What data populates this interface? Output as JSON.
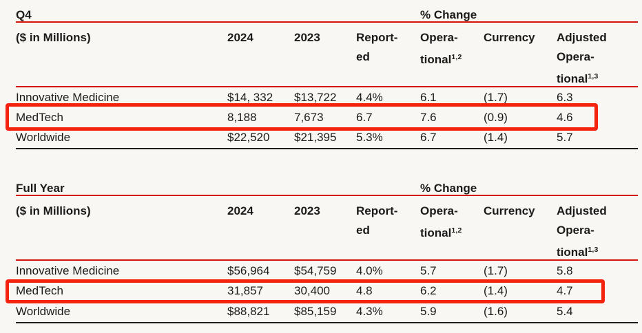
{
  "colors": {
    "background": "#f9f7f4",
    "text": "#1c1b1a",
    "rule_red": "#d2140b",
    "highlight_box_red": "#f3230e"
  },
  "tables": [
    {
      "period": "Q4",
      "pct_change": "% Change",
      "unit": "($ in Millions)",
      "col_2024": "2024",
      "col_2023": "2023",
      "col_reported_line1": "Report-",
      "col_reported_line2": "ed",
      "col_operational_line1": "Opera-",
      "col_operational_line2": "tional",
      "col_operational_sup": "1,2",
      "col_currency": "Currency",
      "col_adjusted_line1": "Adjusted",
      "col_adjusted_line2": "Opera-",
      "col_adjusted_line3": "tional",
      "col_adjusted_sup": "1,3",
      "rows": [
        {
          "label": "Innovative Medicine",
          "v2024": "$14, 332",
          "v2023": "$13,722",
          "reported": "4.4%",
          "operational": "6.1",
          "currency": "(1.7)",
          "adjusted": "6.3"
        },
        {
          "label": "MedTech",
          "v2024": "8,188",
          "v2023": "7,673",
          "reported": "6.7",
          "operational": "7.6",
          "currency": "(0.9)",
          "adjusted": "4.6"
        },
        {
          "label": "Worldwide",
          "v2024": "$22,520",
          "v2023": "$21,395",
          "reported": "5.3%",
          "operational": "6.7",
          "currency": "(1.4)",
          "adjusted": "5.7"
        }
      ],
      "highlighted_row": "MedTech"
    },
    {
      "period": "Full Year",
      "pct_change": "% Change",
      "unit": "($ in Millions)",
      "col_2024": "2024",
      "col_2023": "2023",
      "col_reported_line1": "Report-",
      "col_reported_line2": "ed",
      "col_operational_line1": "Opera-",
      "col_operational_line2": "tional",
      "col_operational_sup": "1,2",
      "col_currency": "Currency",
      "col_adjusted_line1": "Adjusted",
      "col_adjusted_line2": "Opera-",
      "col_adjusted_line3": "tional",
      "col_adjusted_sup": "1,3",
      "rows": [
        {
          "label": "Innovative Medicine",
          "v2024": "$56,964",
          "v2023": "$54,759",
          "reported": "4.0%",
          "operational": "5.7",
          "currency": "(1.7)",
          "adjusted": "5.8"
        },
        {
          "label": "MedTech",
          "v2024": "31,857",
          "v2023": "30,400",
          "reported": "4.8",
          "operational": "6.2",
          "currency": "(1.4)",
          "adjusted": "4.7"
        },
        {
          "label": "Worldwide",
          "v2024": "$88,821",
          "v2023": "$85,159",
          "reported": "4.3%",
          "operational": "5.9",
          "currency": "(1.6)",
          "adjusted": "5.4"
        }
      ],
      "highlighted_row": "MedTech"
    }
  ]
}
